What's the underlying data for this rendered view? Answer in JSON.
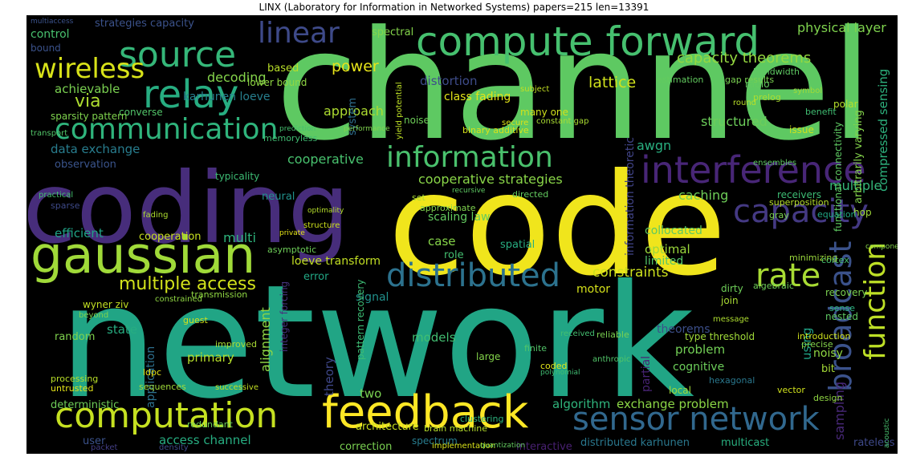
{
  "title": "LINX (Laboratory for Information in Networked Systems) papers=215 len=13391",
  "words": [
    {
      "t": "network",
      "c": "#21a585"
    },
    {
      "t": "channel",
      "c": "#5ec962"
    },
    {
      "t": "code",
      "c": "#f0e51c"
    },
    {
      "t": "coding",
      "c": "#472d7b"
    },
    {
      "t": "compute forward",
      "c": "#46c06f"
    },
    {
      "t": "gaussian",
      "c": "#a0da39"
    },
    {
      "t": "source",
      "c": "#35b779"
    },
    {
      "t": "relay",
      "c": "#27ad81"
    },
    {
      "t": "feedback",
      "c": "#fde725"
    },
    {
      "t": "computation",
      "c": "#c5e021"
    },
    {
      "t": "communication",
      "c": "#2fb47c"
    },
    {
      "t": "interference",
      "c": "#482677"
    },
    {
      "t": "information",
      "c": "#4ac16d"
    },
    {
      "t": "sensor network",
      "c": "#31688e"
    },
    {
      "t": "capacity",
      "c": "#443983"
    },
    {
      "t": "distributed",
      "c": "#2c728e"
    },
    {
      "t": "wireless",
      "c": "#d8e219"
    },
    {
      "t": "broadcast",
      "c": "#3b528b"
    },
    {
      "t": "function",
      "c": "#bddf26"
    },
    {
      "t": "linear",
      "c": "#3e4a89"
    },
    {
      "t": "rate",
      "c": "#a8db34"
    },
    {
      "t": "multiple access",
      "c": "#d2e21b"
    },
    {
      "t": "power",
      "c": "#e7e419"
    },
    {
      "t": "lattice",
      "c": "#d0e11c"
    },
    {
      "t": "capacity theorems",
      "c": "#95d840"
    },
    {
      "t": "physical layer",
      "c": "#7fd34e"
    },
    {
      "t": "decoding",
      "c": "#84d44b"
    },
    {
      "t": "achievable",
      "c": "#7ad151"
    },
    {
      "t": "control",
      "c": "#48c16e"
    },
    {
      "t": "via",
      "c": "#addc30"
    },
    {
      "t": "data exchange",
      "c": "#287d8e"
    },
    {
      "t": "observation",
      "c": "#3a548c"
    },
    {
      "t": "cooperative",
      "c": "#48c16e"
    },
    {
      "t": "cooperative strategies",
      "c": "#89d548"
    },
    {
      "t": "structured",
      "c": "#6ccd5a"
    },
    {
      "t": "caching",
      "c": "#6ece58"
    },
    {
      "t": "awgn",
      "c": "#29af7f"
    },
    {
      "t": "multiple",
      "c": "#35b779"
    },
    {
      "t": "approach",
      "c": "#addc30"
    },
    {
      "t": "distortion",
      "c": "#3e4c8a"
    },
    {
      "t": "karhunen loeve",
      "c": "#277f8e"
    },
    {
      "t": "strategies capacity",
      "c": "#3b528b"
    },
    {
      "t": "efficient",
      "c": "#20a386"
    },
    {
      "t": "cooperation",
      "c": "#c8e020"
    },
    {
      "t": "multi",
      "c": "#2eb37c"
    },
    {
      "t": "scaling law",
      "c": "#63cb5f"
    },
    {
      "t": "constraints",
      "c": "#cde11d"
    },
    {
      "t": "loeve transform",
      "c": "#c2df23"
    },
    {
      "t": "signal",
      "c": "#21918c"
    },
    {
      "t": "optimal",
      "c": "#9bd93c"
    },
    {
      "t": "limited",
      "c": "#52c569"
    },
    {
      "t": "motor",
      "c": "#d5e21a"
    },
    {
      "t": "collocated",
      "c": "#5ec962"
    },
    {
      "t": "case",
      "c": "#86d549"
    },
    {
      "t": "spatial",
      "c": "#27ad81"
    },
    {
      "t": "theory",
      "c": "#3f4788"
    },
    {
      "t": "theorems",
      "c": "#3c4f8a"
    },
    {
      "t": "problem",
      "c": "#73d056"
    },
    {
      "t": "cognitive",
      "c": "#6ccd5a"
    },
    {
      "t": "primary",
      "c": "#b5de2b"
    },
    {
      "t": "state",
      "c": "#27ad81"
    },
    {
      "t": "random",
      "c": "#7fd34e"
    },
    {
      "t": "alignment",
      "c": "#8ed645"
    },
    {
      "t": "application",
      "c": "#2d708e"
    },
    {
      "t": "models",
      "c": "#42be71"
    },
    {
      "t": "two",
      "c": "#7ad151"
    },
    {
      "t": "algorithm",
      "c": "#2fb47c"
    },
    {
      "t": "exchange problem",
      "c": "#8bd646"
    },
    {
      "t": "distributed karhunen",
      "c": "#2a788e"
    },
    {
      "t": "multicast",
      "c": "#29af7f"
    },
    {
      "t": "access channel",
      "c": "#27ad81"
    },
    {
      "t": "deterministic",
      "c": "#6ece58"
    },
    {
      "t": "user",
      "c": "#3b528b"
    },
    {
      "t": "architecture",
      "c": "#c8e020"
    },
    {
      "t": "correction",
      "c": "#7ad151"
    },
    {
      "t": "sampling",
      "c": "#482878"
    },
    {
      "t": "rateless",
      "c": "#3e4989"
    },
    {
      "t": "interactive",
      "c": "#482071"
    },
    {
      "t": "type threshold",
      "c": "#a0da39"
    },
    {
      "t": "noisy",
      "c": "#90d743"
    },
    {
      "t": "using",
      "c": "#20a386"
    },
    {
      "t": "bit",
      "c": "#a5db36"
    },
    {
      "t": "partial",
      "c": "#482475"
    },
    {
      "t": "wyner ziv",
      "c": "#c2df23"
    },
    {
      "t": "error",
      "c": "#22a785"
    },
    {
      "t": "class fading",
      "c": "#e2e418"
    },
    {
      "t": "compressed sensing",
      "c": "#2db27d"
    },
    {
      "t": "information theoretic",
      "c": "#414487"
    },
    {
      "t": "arbitrarily varying",
      "c": "#84d44b"
    },
    {
      "t": "functional connectivity",
      "c": "#5ec962"
    },
    {
      "t": "based",
      "c": "#b8de29"
    },
    {
      "t": "lower bound",
      "c": "#90d743"
    },
    {
      "t": "converse",
      "c": "#52c569"
    },
    {
      "t": "sparsity pattern",
      "c": "#7fd34e"
    },
    {
      "t": "typicality",
      "c": "#3dbc74"
    },
    {
      "t": "neural",
      "c": "#21918c"
    },
    {
      "t": "memoryless",
      "c": "#40bd72"
    },
    {
      "t": "system",
      "c": "#2e6e8e"
    },
    {
      "t": "noise",
      "c": "#6ece58"
    },
    {
      "t": "nested",
      "c": "#5ec962"
    },
    {
      "t": "large",
      "c": "#84d44b"
    },
    {
      "t": "spectrum",
      "c": "#287c8e"
    },
    {
      "t": "integer forcing",
      "c": "#46337e"
    },
    {
      "t": "pattern recovery",
      "c": "#3dbc74"
    },
    {
      "t": "role",
      "c": "#44bf70"
    },
    {
      "t": "join",
      "c": "#a8db34"
    },
    {
      "t": "recovery",
      "c": "#7ad151"
    },
    {
      "t": "sense",
      "c": "#2db27d"
    },
    {
      "t": "spectral",
      "c": "#84d44b"
    },
    {
      "t": "polar",
      "c": "#b5de2b"
    },
    {
      "t": "ldpc",
      "c": "#e5e419"
    },
    {
      "t": "binary additive",
      "c": "#d8e219"
    },
    {
      "t": "many one",
      "c": "#d0e11c"
    },
    {
      "t": "estimation",
      "c": "#63cb5f"
    },
    {
      "t": "approximate",
      "c": "#7fd34e"
    },
    {
      "t": "hexagonal",
      "c": "#2a788e"
    },
    {
      "t": "receivers",
      "c": "#3dbc74"
    },
    {
      "t": "superposition",
      "c": "#b5de2b"
    },
    {
      "t": "hop",
      "c": "#a0da39"
    },
    {
      "t": "bound",
      "c": "#3b528b"
    },
    {
      "t": "gap results",
      "c": "#7ad151"
    },
    {
      "t": "radio",
      "c": "#63cb5f"
    },
    {
      "t": "prelog",
      "c": "#aadc32"
    },
    {
      "t": "bandwidth",
      "c": "#5ec962"
    },
    {
      "t": "benefit",
      "c": "#40bd72"
    },
    {
      "t": "issue",
      "c": "#cde11d"
    },
    {
      "t": "dirty",
      "c": "#6ece58"
    },
    {
      "t": "cortex",
      "c": "#46c06f"
    },
    {
      "t": "minimizing",
      "c": "#9bd93c"
    },
    {
      "t": "fading",
      "c": "#addc30"
    },
    {
      "t": "sparse",
      "c": "#3e4a89"
    },
    {
      "t": "transport",
      "c": "#52c569"
    },
    {
      "t": "transmission",
      "c": "#90d743"
    },
    {
      "t": "untrusted",
      "c": "#e5e419"
    },
    {
      "t": "sequences",
      "c": "#a0da39"
    },
    {
      "t": "processing",
      "c": "#b8de29"
    },
    {
      "t": "guest",
      "c": "#d0e11c"
    },
    {
      "t": "beyond",
      "c": "#7fd34e"
    },
    {
      "t": "successive",
      "c": "#c2df23"
    },
    {
      "t": "improved",
      "c": "#a8db34"
    },
    {
      "t": "redundant",
      "c": "#6ece58"
    },
    {
      "t": "density",
      "c": "#3e4a89"
    },
    {
      "t": "packet",
      "c": "#433e85"
    },
    {
      "t": "brain machine",
      "c": "#b5de2b"
    },
    {
      "t": "implementation",
      "c": "#d8e219"
    },
    {
      "t": "quantization",
      "c": "#63cb5f"
    },
    {
      "t": "clustering",
      "c": "#2db27d"
    },
    {
      "t": "finite",
      "c": "#52c569"
    },
    {
      "t": "reliable",
      "c": "#7ad151"
    },
    {
      "t": "received",
      "c": "#44bf70"
    },
    {
      "t": "vector",
      "c": "#d0e11c"
    },
    {
      "t": "local",
      "c": "#a0da39"
    },
    {
      "t": "design",
      "c": "#90d743"
    },
    {
      "t": "precise",
      "c": "#84d44b"
    },
    {
      "t": "introduction",
      "c": "#cde11d"
    },
    {
      "t": "message",
      "c": "#addc30"
    },
    {
      "t": "algebraic",
      "c": "#6ece58"
    },
    {
      "t": "anthropic",
      "c": "#52c569"
    },
    {
      "t": "coded",
      "c": "#e2e418"
    },
    {
      "t": "polynomial",
      "c": "#40bd72"
    },
    {
      "t": "ensembles",
      "c": "#5ec962"
    },
    {
      "t": "equation",
      "c": "#22a785"
    },
    {
      "t": "gray",
      "c": "#7ad151"
    },
    {
      "t": "symbol",
      "c": "#a0da39"
    },
    {
      "t": "round",
      "c": "#b8de29"
    },
    {
      "t": "multiaccess",
      "c": "#3b528b"
    },
    {
      "t": "acoustic",
      "c": "#48c16e"
    },
    {
      "t": "components",
      "c": "#84d44b"
    },
    {
      "t": "subject",
      "c": "#c2df23"
    },
    {
      "t": "directed",
      "c": "#63cb5f"
    },
    {
      "t": "secure",
      "c": "#d8e219"
    },
    {
      "t": "constant gap",
      "c": "#aadc32"
    },
    {
      "t": "yield potential",
      "c": "#bddf26"
    },
    {
      "t": "performance",
      "c": "#7fd34e"
    },
    {
      "t": "prediction",
      "c": "#46c06f"
    },
    {
      "t": "structure",
      "c": "#cde11d"
    },
    {
      "t": "recursive",
      "c": "#5ec962"
    },
    {
      "t": "private",
      "c": "#e5e419"
    },
    {
      "t": "constrained",
      "c": "#90d743"
    },
    {
      "t": "practical",
      "c": "#44bf70"
    },
    {
      "t": "optimality",
      "c": "#b5de2b"
    },
    {
      "t": "set",
      "c": "#a8db34"
    },
    {
      "t": "asymptotic",
      "c": "#6ece58"
    }
  ]
}
